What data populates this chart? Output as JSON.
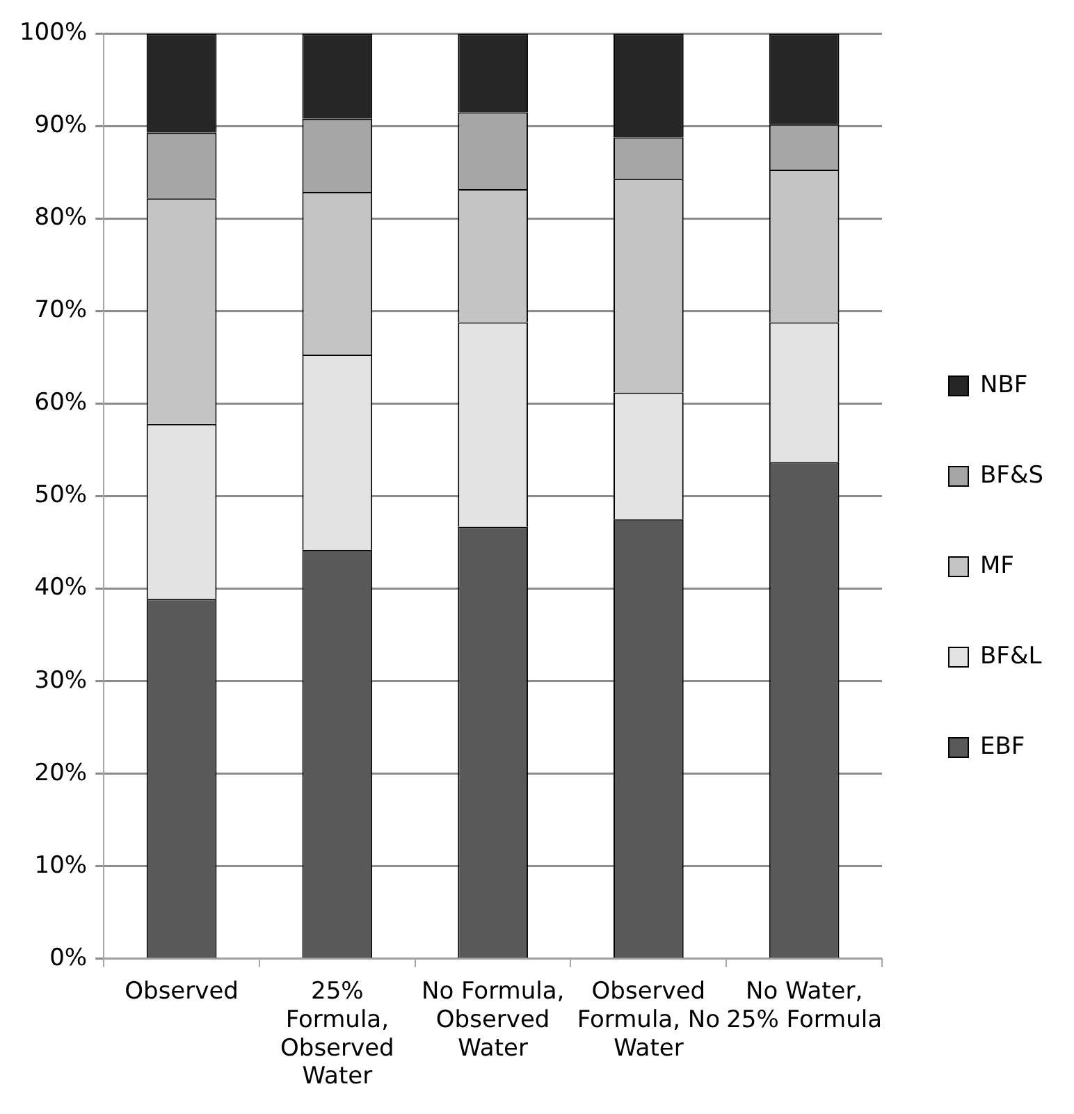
{
  "chart_data": {
    "type": "bar",
    "stacked": true,
    "categories": [
      "Observed",
      "25% Formula, Observed Water",
      "No Formula, Observed Water",
      "Observed Formula, No Water",
      "No Water, 25% Formula"
    ],
    "series": [
      {
        "name": "EBF",
        "color": "#595959",
        "values": [
          38.9,
          44.2,
          46.7,
          47.5,
          53.7
        ]
      },
      {
        "name": "BF&L",
        "color": "#e3e3e3",
        "values": [
          18.9,
          21.1,
          22.1,
          13.7,
          15.1
        ]
      },
      {
        "name": "MF",
        "color": "#c4c4c4",
        "values": [
          24.4,
          17.6,
          14.4,
          23.1,
          16.5
        ]
      },
      {
        "name": "BF&S",
        "color": "#a6a6a6",
        "values": [
          7.1,
          7.9,
          8.3,
          4.5,
          4.9
        ]
      },
      {
        "name": "NBF",
        "color": "#262626",
        "values": [
          10.7,
          9.2,
          8.5,
          11.2,
          9.8
        ]
      }
    ],
    "ylim": [
      0,
      100
    ],
    "yticks": [
      {
        "value": 0,
        "label": "0%"
      },
      {
        "value": 10,
        "label": "10%"
      },
      {
        "value": 20,
        "label": "20%"
      },
      {
        "value": 30,
        "label": "30%"
      },
      {
        "value": 40,
        "label": "40%"
      },
      {
        "value": 50,
        "label": "50%"
      },
      {
        "value": 60,
        "label": "60%"
      },
      {
        "value": 70,
        "label": "70%"
      },
      {
        "value": 80,
        "label": "80%"
      },
      {
        "value": 90,
        "label": "90%"
      },
      {
        "value": 100,
        "label": "100%"
      }
    ],
    "grid": "y",
    "legend": "right"
  }
}
